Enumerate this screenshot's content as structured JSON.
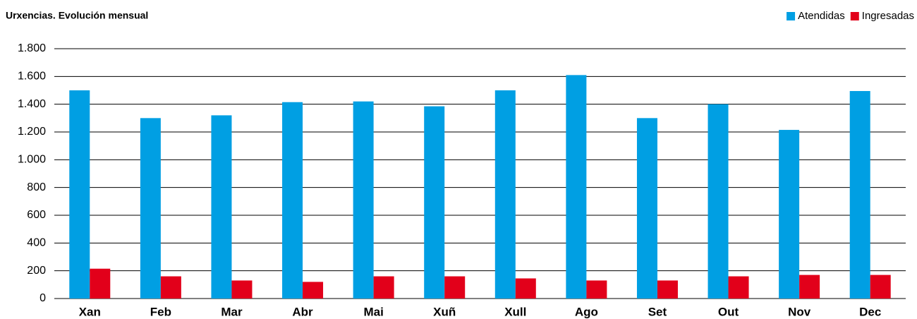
{
  "chart_data": {
    "type": "bar",
    "title": "Urxencias. Evolución mensual",
    "categories": [
      "Xan",
      "Feb",
      "Mar",
      "Abr",
      "Mai",
      "Xuñ",
      "Xull",
      "Ago",
      "Set",
      "Out",
      "Nov",
      "Dec"
    ],
    "series": [
      {
        "name": "Atendidas",
        "color": "#009fe3",
        "values": [
          1500,
          1300,
          1320,
          1415,
          1420,
          1385,
          1500,
          1610,
          1300,
          1400,
          1215,
          1495
        ]
      },
      {
        "name": "Ingresadas",
        "color": "#e2001a",
        "values": [
          215,
          160,
          130,
          120,
          160,
          160,
          145,
          130,
          130,
          160,
          170,
          170
        ]
      }
    ],
    "ylim": [
      0,
      1800
    ],
    "yticks": [
      0,
      200,
      400,
      600,
      800,
      {
        "value": 1000,
        "label": "1.000"
      },
      {
        "value": 1200,
        "label": "1.200"
      },
      {
        "value": 1400,
        "label": "1.400"
      },
      {
        "value": 1600,
        "label": "1.600"
      },
      {
        "value": 1800,
        "label": "1.800"
      }
    ],
    "grid": true,
    "legend": "top-right"
  }
}
